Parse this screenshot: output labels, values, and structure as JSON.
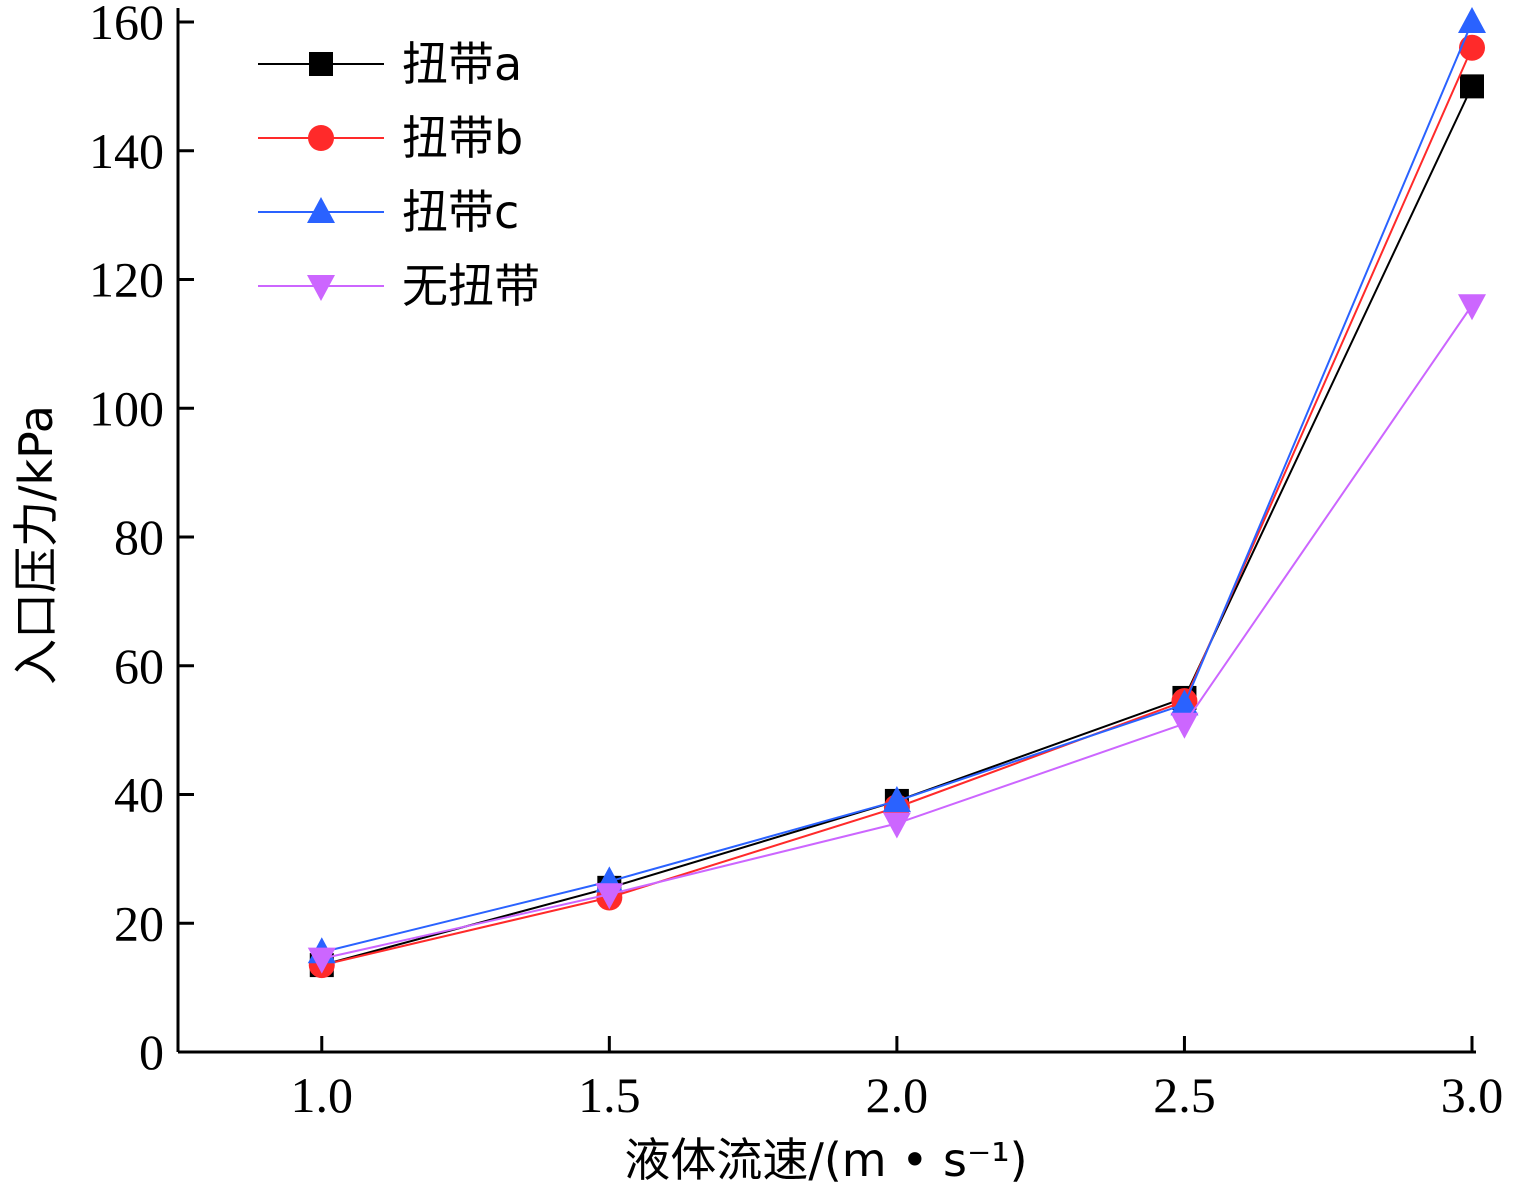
{
  "chart_data": {
    "type": "line",
    "title": "",
    "xlabel": "液体流速/(m • s⁻¹)",
    "ylabel": "入口压力/kPa",
    "x": [
      1.0,
      1.5,
      2.0,
      2.5,
      3.0
    ],
    "x_tick_labels": [
      "1.0",
      "1.5",
      "2.0",
      "2.5",
      "3.0"
    ],
    "y_ticks": [
      0,
      20,
      40,
      60,
      80,
      100,
      120,
      140,
      160
    ],
    "xlim": [
      0.75,
      3.0
    ],
    "ylim": [
      0,
      160
    ],
    "grid": false,
    "legend_position": "top-left",
    "series": [
      {
        "name": "扭带a",
        "color": "#000000",
        "marker": "square",
        "values": [
          13.5,
          25.5,
          39,
          55,
          150
        ]
      },
      {
        "name": "扭带b",
        "color": "#ff2a2a",
        "marker": "circle",
        "values": [
          13.5,
          24,
          38,
          54.5,
          156
        ]
      },
      {
        "name": "扭带c",
        "color": "#2a62ff",
        "marker": "triangle-up",
        "values": [
          15.5,
          26.5,
          39,
          54,
          160
        ]
      },
      {
        "name": "无扭带",
        "color": "#cc66ff",
        "marker": "triangle-down",
        "values": [
          14.5,
          24.5,
          35.5,
          51,
          116
        ]
      }
    ]
  }
}
